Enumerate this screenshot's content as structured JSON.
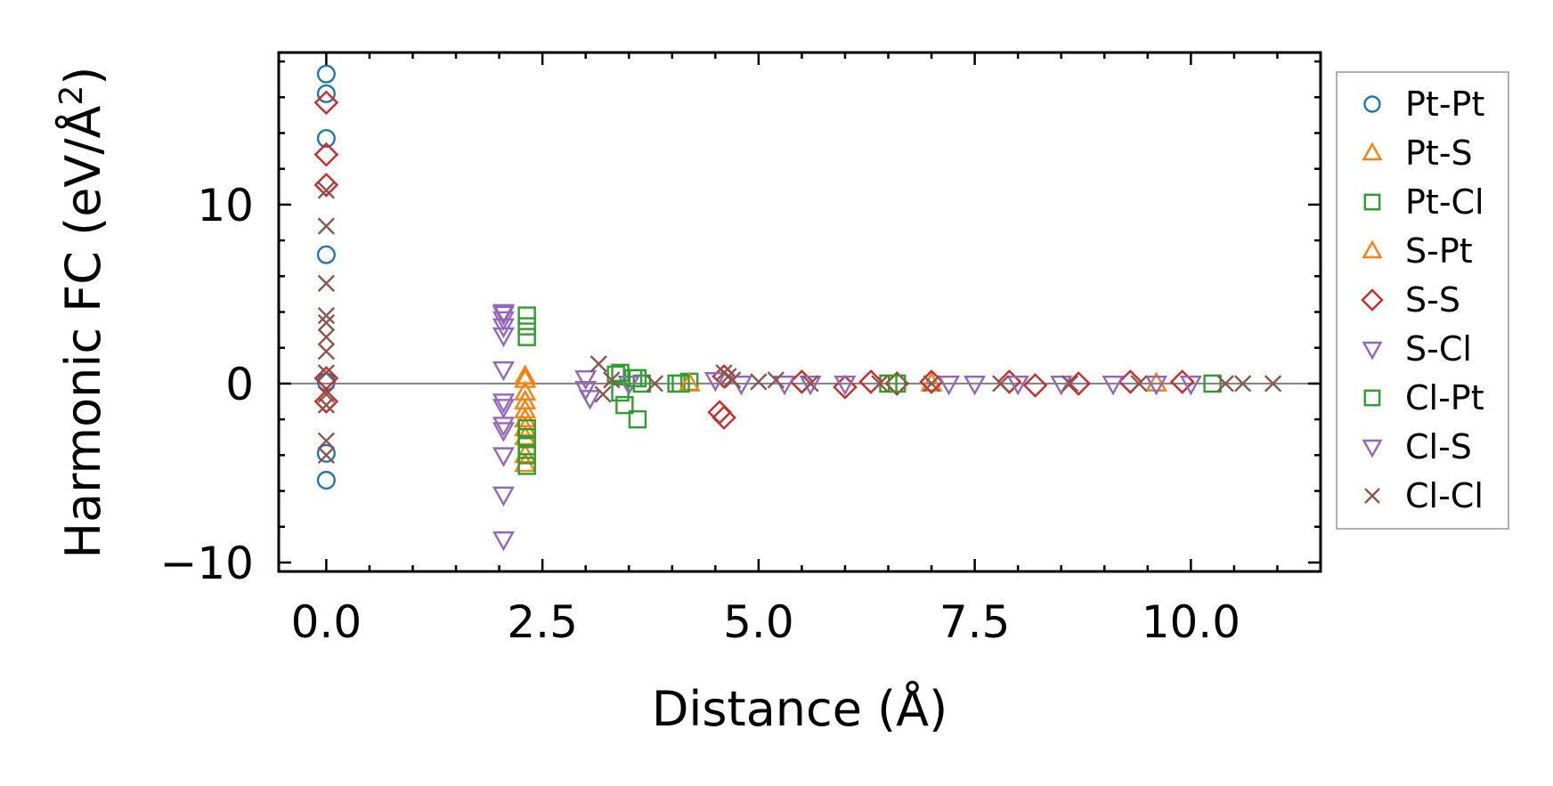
{
  "chart_data": {
    "type": "scatter",
    "title": "",
    "xlabel": "Distance (Å)",
    "ylabel_main": "Harmonic FC (eV/Å",
    "ylabel_sup": "2",
    "ylabel_close": ")",
    "xlim": [
      -0.55,
      11.5
    ],
    "ylim": [
      -10.5,
      18.5
    ],
    "xticks": [
      0.0,
      2.5,
      5.0,
      7.5,
      10.0
    ],
    "xtick_labels": [
      "0.0",
      "2.5",
      "5.0",
      "7.5",
      "10.0"
    ],
    "yticks": [
      -10,
      0,
      10
    ],
    "ytick_labels": [
      "−10",
      "0",
      "10"
    ],
    "zero_line": 0,
    "legend_position": "outside-right",
    "series": [
      {
        "name": "Pt-Pt",
        "marker": "circle",
        "color": "#1f77b4",
        "points": [
          [
            0,
            17.3
          ],
          [
            0,
            16.2
          ],
          [
            0,
            13.7
          ],
          [
            0,
            7.2
          ],
          [
            0,
            -3.9
          ],
          [
            0,
            -5.4
          ],
          [
            0,
            0.1
          ]
        ]
      },
      {
        "name": "Pt-S",
        "marker": "triangle-up",
        "color": "#ff7f0e",
        "points": [
          [
            2.3,
            0.2
          ],
          [
            2.3,
            -0.5
          ],
          [
            2.3,
            -1.0
          ],
          [
            2.3,
            -1.5
          ],
          [
            2.3,
            -2.0
          ],
          [
            2.3,
            -2.5
          ],
          [
            2.3,
            -3.0
          ],
          [
            2.3,
            -4.0
          ],
          [
            2.3,
            -4.5
          ]
        ]
      },
      {
        "name": "Pt-Cl",
        "marker": "square",
        "color": "#2ca02c",
        "points": [
          [
            2.32,
            3.8
          ],
          [
            2.32,
            3.2
          ],
          [
            2.32,
            2.6
          ],
          [
            2.32,
            -2.5
          ],
          [
            2.32,
            -3.0
          ],
          [
            2.32,
            -3.5
          ],
          [
            2.32,
            -4.0
          ],
          [
            2.32,
            -4.6
          ],
          [
            3.35,
            0.5
          ],
          [
            3.4,
            -0.5
          ],
          [
            3.45,
            -1.2
          ],
          [
            3.55,
            0.3
          ],
          [
            3.6,
            -2.0
          ],
          [
            3.65,
            0.0
          ],
          [
            4.05,
            0.0
          ],
          [
            4.2,
            0.1
          ],
          [
            6.5,
            0.0
          ],
          [
            10.25,
            0.0
          ]
        ]
      },
      {
        "name": "S-Pt",
        "marker": "triangle-up",
        "color": "#ff7f0e",
        "points": [
          [
            2.3,
            0.4
          ],
          [
            4.2,
            0.0
          ],
          [
            7.0,
            0.0
          ],
          [
            9.6,
            0.0
          ]
        ]
      },
      {
        "name": "S-S",
        "marker": "diamond",
        "color": "#d62728",
        "points": [
          [
            0,
            15.7
          ],
          [
            0,
            12.8
          ],
          [
            0,
            11.1
          ],
          [
            0,
            0.3
          ],
          [
            0,
            -1.0
          ],
          [
            4.55,
            -1.6
          ],
          [
            4.6,
            -1.9
          ],
          [
            4.6,
            0.4
          ],
          [
            5.5,
            0.1
          ],
          [
            6.0,
            -0.2
          ],
          [
            6.3,
            0.1
          ],
          [
            6.6,
            0.0
          ],
          [
            7.0,
            0.1
          ],
          [
            7.9,
            0.1
          ],
          [
            8.2,
            -0.1
          ],
          [
            8.7,
            0.0
          ],
          [
            9.3,
            0.1
          ],
          [
            9.9,
            0.1
          ]
        ]
      },
      {
        "name": "S-Cl",
        "marker": "triangle-down",
        "color": "#9467bd",
        "points": [
          [
            2.05,
            4.0
          ],
          [
            2.05,
            3.6
          ],
          [
            2.05,
            3.2
          ],
          [
            2.05,
            2.7
          ],
          [
            2.05,
            0.8
          ],
          [
            2.05,
            -1.0
          ],
          [
            2.05,
            -2.3
          ],
          [
            2.05,
            -4.0
          ],
          [
            2.05,
            -6.2
          ],
          [
            2.05,
            -8.7
          ],
          [
            3.0,
            0.3
          ],
          [
            3.05,
            -0.8
          ],
          [
            3.5,
            0.0
          ],
          [
            4.5,
            0.2
          ],
          [
            5.3,
            0.0
          ],
          [
            6.0,
            0.0
          ],
          [
            7.5,
            0.0
          ],
          [
            8.5,
            0.0
          ],
          [
            9.6,
            0.0
          ]
        ]
      },
      {
        "name": "Cl-Pt",
        "marker": "square",
        "color": "#2ca02c",
        "points": [
          [
            3.4,
            0.6
          ],
          [
            3.6,
            0.3
          ],
          [
            4.1,
            0.0
          ],
          [
            6.6,
            0.0
          ]
        ]
      },
      {
        "name": "Cl-S",
        "marker": "triangle-down",
        "color": "#9467bd",
        "points": [
          [
            2.05,
            3.9
          ],
          [
            2.05,
            -1.3
          ],
          [
            2.05,
            -2.6
          ],
          [
            3.0,
            -0.3
          ],
          [
            4.8,
            0.0
          ],
          [
            5.6,
            0.0
          ],
          [
            7.2,
            0.0
          ],
          [
            8.0,
            0.0
          ],
          [
            9.1,
            0.0
          ],
          [
            10.0,
            0.0
          ]
        ]
      },
      {
        "name": "Cl-Cl",
        "marker": "x",
        "color": "#8c564b",
        "points": [
          [
            0,
            10.8
          ],
          [
            0,
            8.8
          ],
          [
            0,
            5.6
          ],
          [
            0,
            3.8
          ],
          [
            0,
            3.4
          ],
          [
            0,
            2.6
          ],
          [
            0,
            1.8
          ],
          [
            0,
            0.6
          ],
          [
            0,
            -0.6
          ],
          [
            0,
            -1.2
          ],
          [
            0,
            -3.2
          ],
          [
            0,
            -4.0
          ],
          [
            3.15,
            1.1
          ],
          [
            3.2,
            -0.6
          ],
          [
            3.3,
            0.2
          ],
          [
            3.8,
            0.0
          ],
          [
            4.6,
            0.6
          ],
          [
            4.65,
            0.4
          ],
          [
            4.7,
            0.2
          ],
          [
            5.0,
            0.1
          ],
          [
            5.2,
            0.2
          ],
          [
            5.6,
            0.0
          ],
          [
            6.4,
            0.0
          ],
          [
            7.0,
            0.0
          ],
          [
            7.8,
            0.0
          ],
          [
            8.6,
            0.0
          ],
          [
            9.4,
            0.0
          ],
          [
            10.4,
            0.0
          ],
          [
            10.6,
            0.0
          ],
          [
            10.95,
            0.0
          ]
        ]
      }
    ]
  },
  "legend": {
    "entries": [
      {
        "label": "Pt-Pt",
        "marker": "circle",
        "color": "#1f77b4"
      },
      {
        "label": "Pt-S",
        "marker": "triangle-up",
        "color": "#ff7f0e"
      },
      {
        "label": "Pt-Cl",
        "marker": "square",
        "color": "#2ca02c"
      },
      {
        "label": "S-Pt",
        "marker": "triangle-up",
        "color": "#ff7f0e"
      },
      {
        "label": "S-S",
        "marker": "diamond",
        "color": "#d62728"
      },
      {
        "label": "S-Cl",
        "marker": "triangle-down",
        "color": "#9467bd"
      },
      {
        "label": "Cl-Pt",
        "marker": "square",
        "color": "#2ca02c"
      },
      {
        "label": "Cl-S",
        "marker": "triangle-down",
        "color": "#9467bd"
      },
      {
        "label": "Cl-Cl",
        "marker": "x",
        "color": "#8c564b"
      }
    ]
  }
}
